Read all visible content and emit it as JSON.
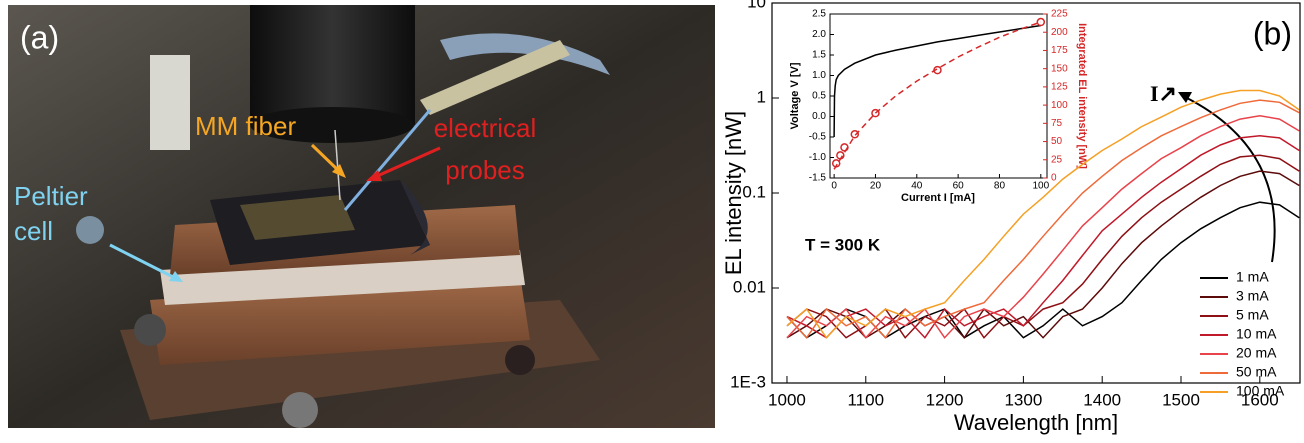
{
  "photo": {
    "panel_label": "(a)",
    "mm_fiber": "MM fiber",
    "electrical_probes": [
      "electrical",
      "probes"
    ],
    "peltier_cell": [
      "Peltier",
      "cell"
    ]
  },
  "chart_data": {
    "type": "line",
    "panel_label": "(b)",
    "xlabel": "Wavelength [nm]",
    "ylabel": "EL intensity [nW]",
    "yscale": "log",
    "legend": "lower right",
    "annotations": [
      "T = 300 K",
      "I↗"
    ],
    "x": [
      1000,
      1025,
      1050,
      1075,
      1100,
      1125,
      1150,
      1175,
      1200,
      1225,
      1250,
      1275,
      1300,
      1325,
      1350,
      1375,
      1400,
      1425,
      1450,
      1475,
      1500,
      1525,
      1550,
      1575,
      1600,
      1625,
      1650
    ],
    "xlim": [
      981,
      1651
    ],
    "xticks": [
      1000,
      1100,
      1200,
      1300,
      1400,
      1500,
      1600
    ],
    "ylim": [
      0.001,
      10
    ],
    "yticks": [
      {
        "value": 0.001,
        "label": "1E-3"
      },
      0.01,
      0.1,
      1,
      10
    ],
    "series": [
      {
        "name": "1 mA",
        "color": "#000000",
        "values": [
          0.005,
          0.003,
          0.004,
          0.006,
          0.005,
          0.003,
          0.004,
          0.005,
          0.006,
          0.003,
          0.004,
          0.005,
          0.003,
          0.004,
          0.006,
          0.004,
          0.005,
          0.007,
          0.012,
          0.02,
          0.03,
          0.042,
          0.055,
          0.07,
          0.08,
          0.075,
          0.055
        ]
      },
      {
        "name": "3 mA",
        "color": "#5c0a0a",
        "values": [
          0.003,
          0.004,
          0.006,
          0.005,
          0.003,
          0.004,
          0.006,
          0.004,
          0.005,
          0.003,
          0.006,
          0.004,
          0.005,
          0.003,
          0.005,
          0.006,
          0.01,
          0.018,
          0.03,
          0.045,
          0.065,
          0.09,
          0.12,
          0.15,
          0.17,
          0.16,
          0.12
        ]
      },
      {
        "name": "5 mA",
        "color": "#8e0f14",
        "values": [
          0.004,
          0.006,
          0.005,
          0.003,
          0.004,
          0.006,
          0.003,
          0.005,
          0.004,
          0.006,
          0.003,
          0.005,
          0.004,
          0.006,
          0.007,
          0.011,
          0.02,
          0.035,
          0.055,
          0.08,
          0.11,
          0.15,
          0.2,
          0.24,
          0.25,
          0.23,
          0.17
        ]
      },
      {
        "name": "10 mA",
        "color": "#c0192a",
        "values": [
          0.005,
          0.004,
          0.003,
          0.005,
          0.006,
          0.004,
          0.005,
          0.003,
          0.006,
          0.004,
          0.005,
          0.006,
          0.004,
          0.007,
          0.012,
          0.022,
          0.04,
          0.06,
          0.09,
          0.13,
          0.18,
          0.25,
          0.32,
          0.38,
          0.4,
          0.38,
          0.28
        ]
      },
      {
        "name": "20 mA",
        "color": "#e8434a",
        "values": [
          0.003,
          0.005,
          0.004,
          0.006,
          0.003,
          0.005,
          0.004,
          0.006,
          0.003,
          0.005,
          0.006,
          0.005,
          0.008,
          0.014,
          0.025,
          0.045,
          0.07,
          0.11,
          0.16,
          0.23,
          0.3,
          0.4,
          0.5,
          0.6,
          0.65,
          0.6,
          0.45
        ]
      },
      {
        "name": "50 mA",
        "color": "#ef6a3a",
        "values": [
          0.005,
          0.003,
          0.006,
          0.004,
          0.005,
          0.003,
          0.006,
          0.004,
          0.005,
          0.006,
          0.007,
          0.012,
          0.02,
          0.035,
          0.06,
          0.1,
          0.15,
          0.22,
          0.3,
          0.4,
          0.5,
          0.62,
          0.75,
          0.88,
          0.95,
          0.9,
          0.7
        ]
      },
      {
        "name": "100 mA",
        "color": "#f5a024",
        "values": [
          0.004,
          0.006,
          0.003,
          0.005,
          0.004,
          0.006,
          0.005,
          0.006,
          0.007,
          0.012,
          0.02,
          0.035,
          0.06,
          0.09,
          0.14,
          0.2,
          0.28,
          0.37,
          0.5,
          0.63,
          0.8,
          0.95,
          1.1,
          1.2,
          1.2,
          1.05,
          0.75
        ]
      }
    ],
    "inset": {
      "type": "line",
      "xlabel": "Current I [mA]",
      "ylabel": "Voltage V [V]",
      "y2label": "Integrated EL intensity [nW]",
      "xlim": [
        -2,
        103
      ],
      "xticks": [
        0,
        20,
        40,
        60,
        80,
        100
      ],
      "ylim": [
        -1.5,
        2.5
      ],
      "yticks": [
        -1.5,
        {
          "value": -1,
          "label": "-1.0"
        },
        -0.5,
        {
          "value": 0,
          "label": "0.0"
        },
        0.5,
        {
          "value": 1,
          "label": "1.0"
        },
        1.5,
        {
          "value": 2,
          "label": "2.0"
        },
        2.5
      ],
      "y2lim": [
        0,
        225
      ],
      "y2ticks": [
        0,
        25,
        50,
        75,
        100,
        125,
        150,
        175,
        200,
        225
      ],
      "y2color": "#d62728",
      "series": [
        {
          "color": "#000000",
          "x": [
            0,
            0.2,
            0.5,
            1,
            2,
            5,
            10,
            20,
            30,
            40,
            50,
            60,
            70,
            80,
            90,
            100
          ],
          "values": [
            -0.5,
            0.5,
            0.75,
            0.9,
            1.0,
            1.15,
            1.3,
            1.5,
            1.62,
            1.72,
            1.82,
            1.9,
            1.98,
            2.06,
            2.14,
            2.22
          ]
        },
        {
          "color": "#d62728",
          "axis": "y2",
          "marker": "circle",
          "x": [
            1,
            3,
            5,
            10,
            20,
            50,
            100
          ],
          "values": [
            20,
            31,
            42,
            60,
            89,
            148,
            214
          ]
        },
        {
          "color": "#d62728",
          "axis": "y2",
          "dash": true,
          "x": [
            0,
            10,
            20,
            30,
            40,
            50,
            60,
            70,
            80,
            90,
            100
          ],
          "values": [
            12,
            58,
            89,
            113,
            133,
            150,
            166,
            180,
            193,
            204,
            214
          ]
        }
      ]
    }
  }
}
